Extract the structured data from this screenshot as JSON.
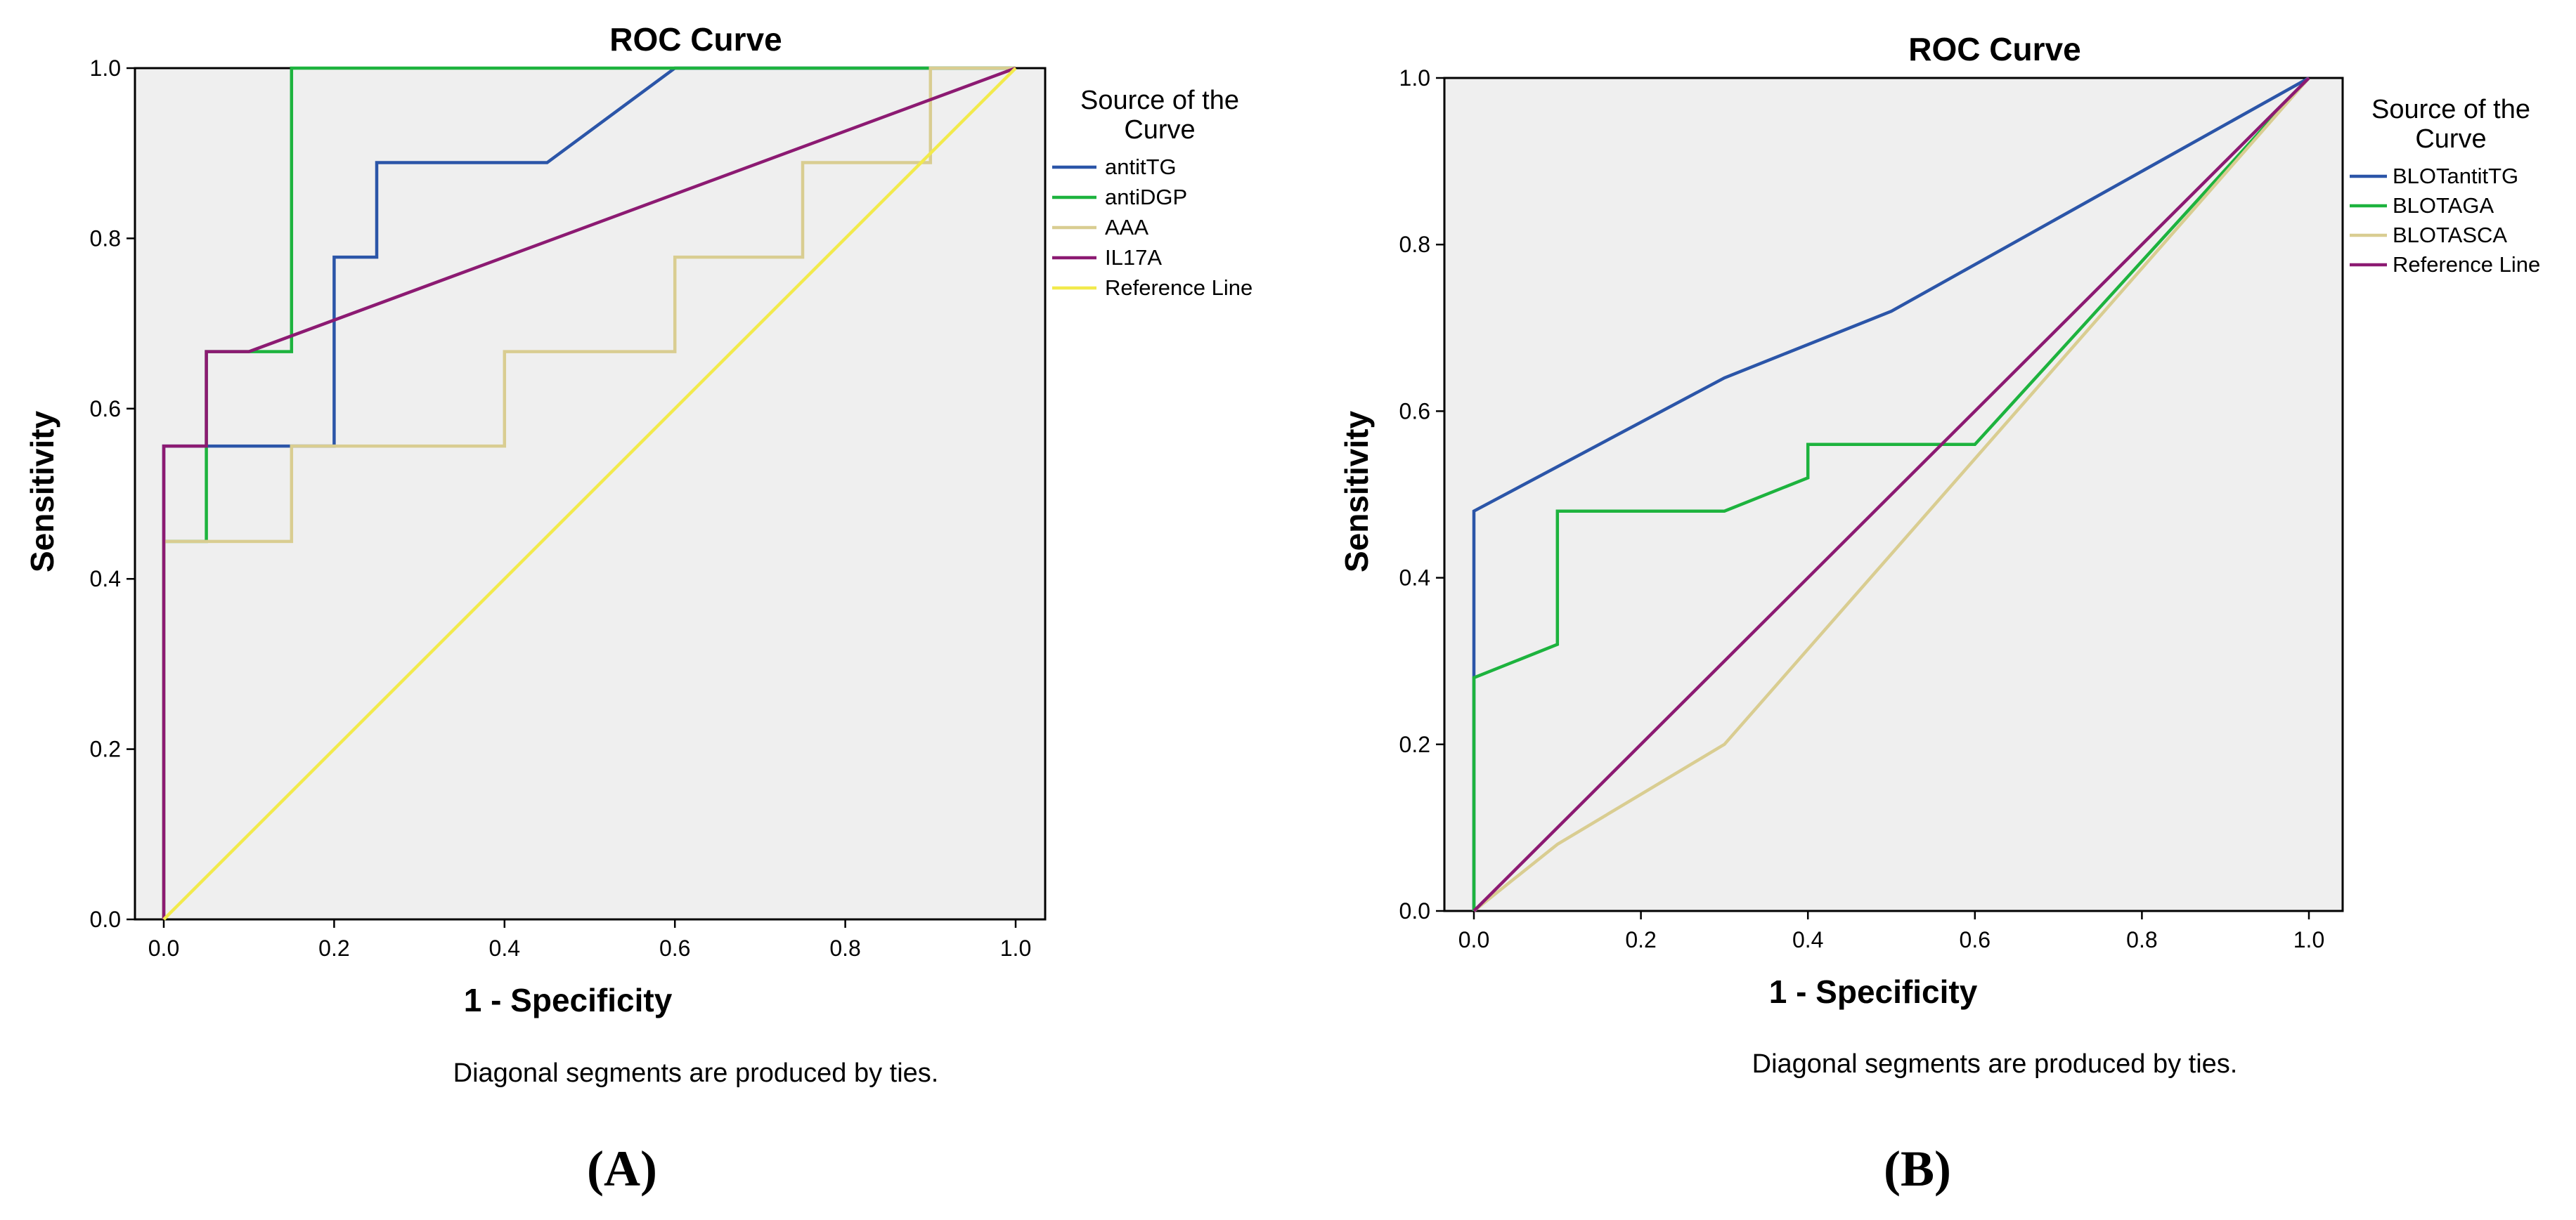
{
  "chart_data": [
    {
      "type": "line",
      "title": "ROC Curve",
      "xlabel": "1 - Specificity",
      "ylabel": "Sensitivity",
      "xlim": [
        0,
        1
      ],
      "ylim": [
        0,
        1
      ],
      "xticks": [
        "0.0",
        "0.2",
        "0.4",
        "0.6",
        "0.8",
        "1.0"
      ],
      "yticks": [
        "0.0",
        "0.2",
        "0.4",
        "0.6",
        "0.8",
        "1.0"
      ],
      "grid": false,
      "legend_title": "Source of the Curve",
      "legend_position": "right",
      "note": "Diagonal segments are produced by ties.",
      "panel_label": "(A)",
      "series": [
        {
          "name": "antitTG",
          "color": "#2b55a8",
          "points": [
            [
              0,
              0
            ],
            [
              0,
              0.556
            ],
            [
              0.15,
              0.556
            ],
            [
              0.2,
              0.556
            ],
            [
              0.2,
              0.778
            ],
            [
              0.25,
              0.778
            ],
            [
              0.25,
              0.889
            ],
            [
              0.45,
              0.889
            ],
            [
              0.6,
              1
            ],
            [
              1,
              1
            ]
          ]
        },
        {
          "name": "antiDGP",
          "color": "#1db33e",
          "points": [
            [
              0,
              0
            ],
            [
              0,
              0.444
            ],
            [
              0.05,
              0.444
            ],
            [
              0.05,
              0.667
            ],
            [
              0.15,
              0.667
            ],
            [
              0.15,
              1
            ],
            [
              1,
              1
            ]
          ]
        },
        {
          "name": "AAA",
          "color": "#d9cd91",
          "points": [
            [
              0,
              0
            ],
            [
              0,
              0.444
            ],
            [
              0.15,
              0.444
            ],
            [
              0.15,
              0.556
            ],
            [
              0.4,
              0.556
            ],
            [
              0.4,
              0.667
            ],
            [
              0.6,
              0.667
            ],
            [
              0.6,
              0.778
            ],
            [
              0.75,
              0.778
            ],
            [
              0.75,
              0.889
            ],
            [
              0.9,
              0.889
            ],
            [
              0.9,
              1
            ],
            [
              1,
              1
            ]
          ]
        },
        {
          "name": "IL17A",
          "color": "#8c1a72",
          "points": [
            [
              0,
              0
            ],
            [
              0,
              0.556
            ],
            [
              0.05,
              0.556
            ],
            [
              0.05,
              0.667
            ],
            [
              0.1,
              0.667
            ],
            [
              1,
              1
            ]
          ]
        },
        {
          "name": "Reference Line",
          "color": "#f2ea4c",
          "points": [
            [
              0,
              0
            ],
            [
              1,
              1
            ]
          ]
        }
      ]
    },
    {
      "type": "line",
      "title": "ROC Curve",
      "xlabel": "1 - Specificity",
      "ylabel": "Sensitivity",
      "xlim": [
        0,
        1
      ],
      "ylim": [
        0,
        1
      ],
      "xticks": [
        "0.0",
        "0.2",
        "0.4",
        "0.6",
        "0.8",
        "1.0"
      ],
      "yticks": [
        "0.0",
        "0.2",
        "0.4",
        "0.6",
        "0.8",
        "1.0"
      ],
      "grid": false,
      "legend_title": "Source of the Curve",
      "legend_position": "right",
      "note": "Diagonal segments are produced by ties.",
      "panel_label": "(B)",
      "series": [
        {
          "name": "BLOTantitTG",
          "color": "#2b55a8",
          "points": [
            [
              0,
              0
            ],
            [
              0,
              0.48
            ],
            [
              0.3,
              0.64
            ],
            [
              0.5,
              0.72
            ],
            [
              1,
              1
            ]
          ]
        },
        {
          "name": "BLOTAGA",
          "color": "#1db33e",
          "points": [
            [
              0,
              0
            ],
            [
              0,
              0.28
            ],
            [
              0.1,
              0.32
            ],
            [
              0.1,
              0.48
            ],
            [
              0.3,
              0.48
            ],
            [
              0.4,
              0.52
            ],
            [
              0.4,
              0.56
            ],
            [
              0.6,
              0.56
            ],
            [
              1,
              1
            ]
          ]
        },
        {
          "name": "BLOTASCA",
          "color": "#d9cd91",
          "points": [
            [
              0,
              0
            ],
            [
              0.1,
              0.08
            ],
            [
              0.3,
              0.2
            ],
            [
              1,
              1
            ]
          ]
        },
        {
          "name": "Reference Line",
          "color": "#8c1a72",
          "points": [
            [
              0,
              0
            ],
            [
              1,
              1
            ]
          ]
        }
      ]
    }
  ]
}
